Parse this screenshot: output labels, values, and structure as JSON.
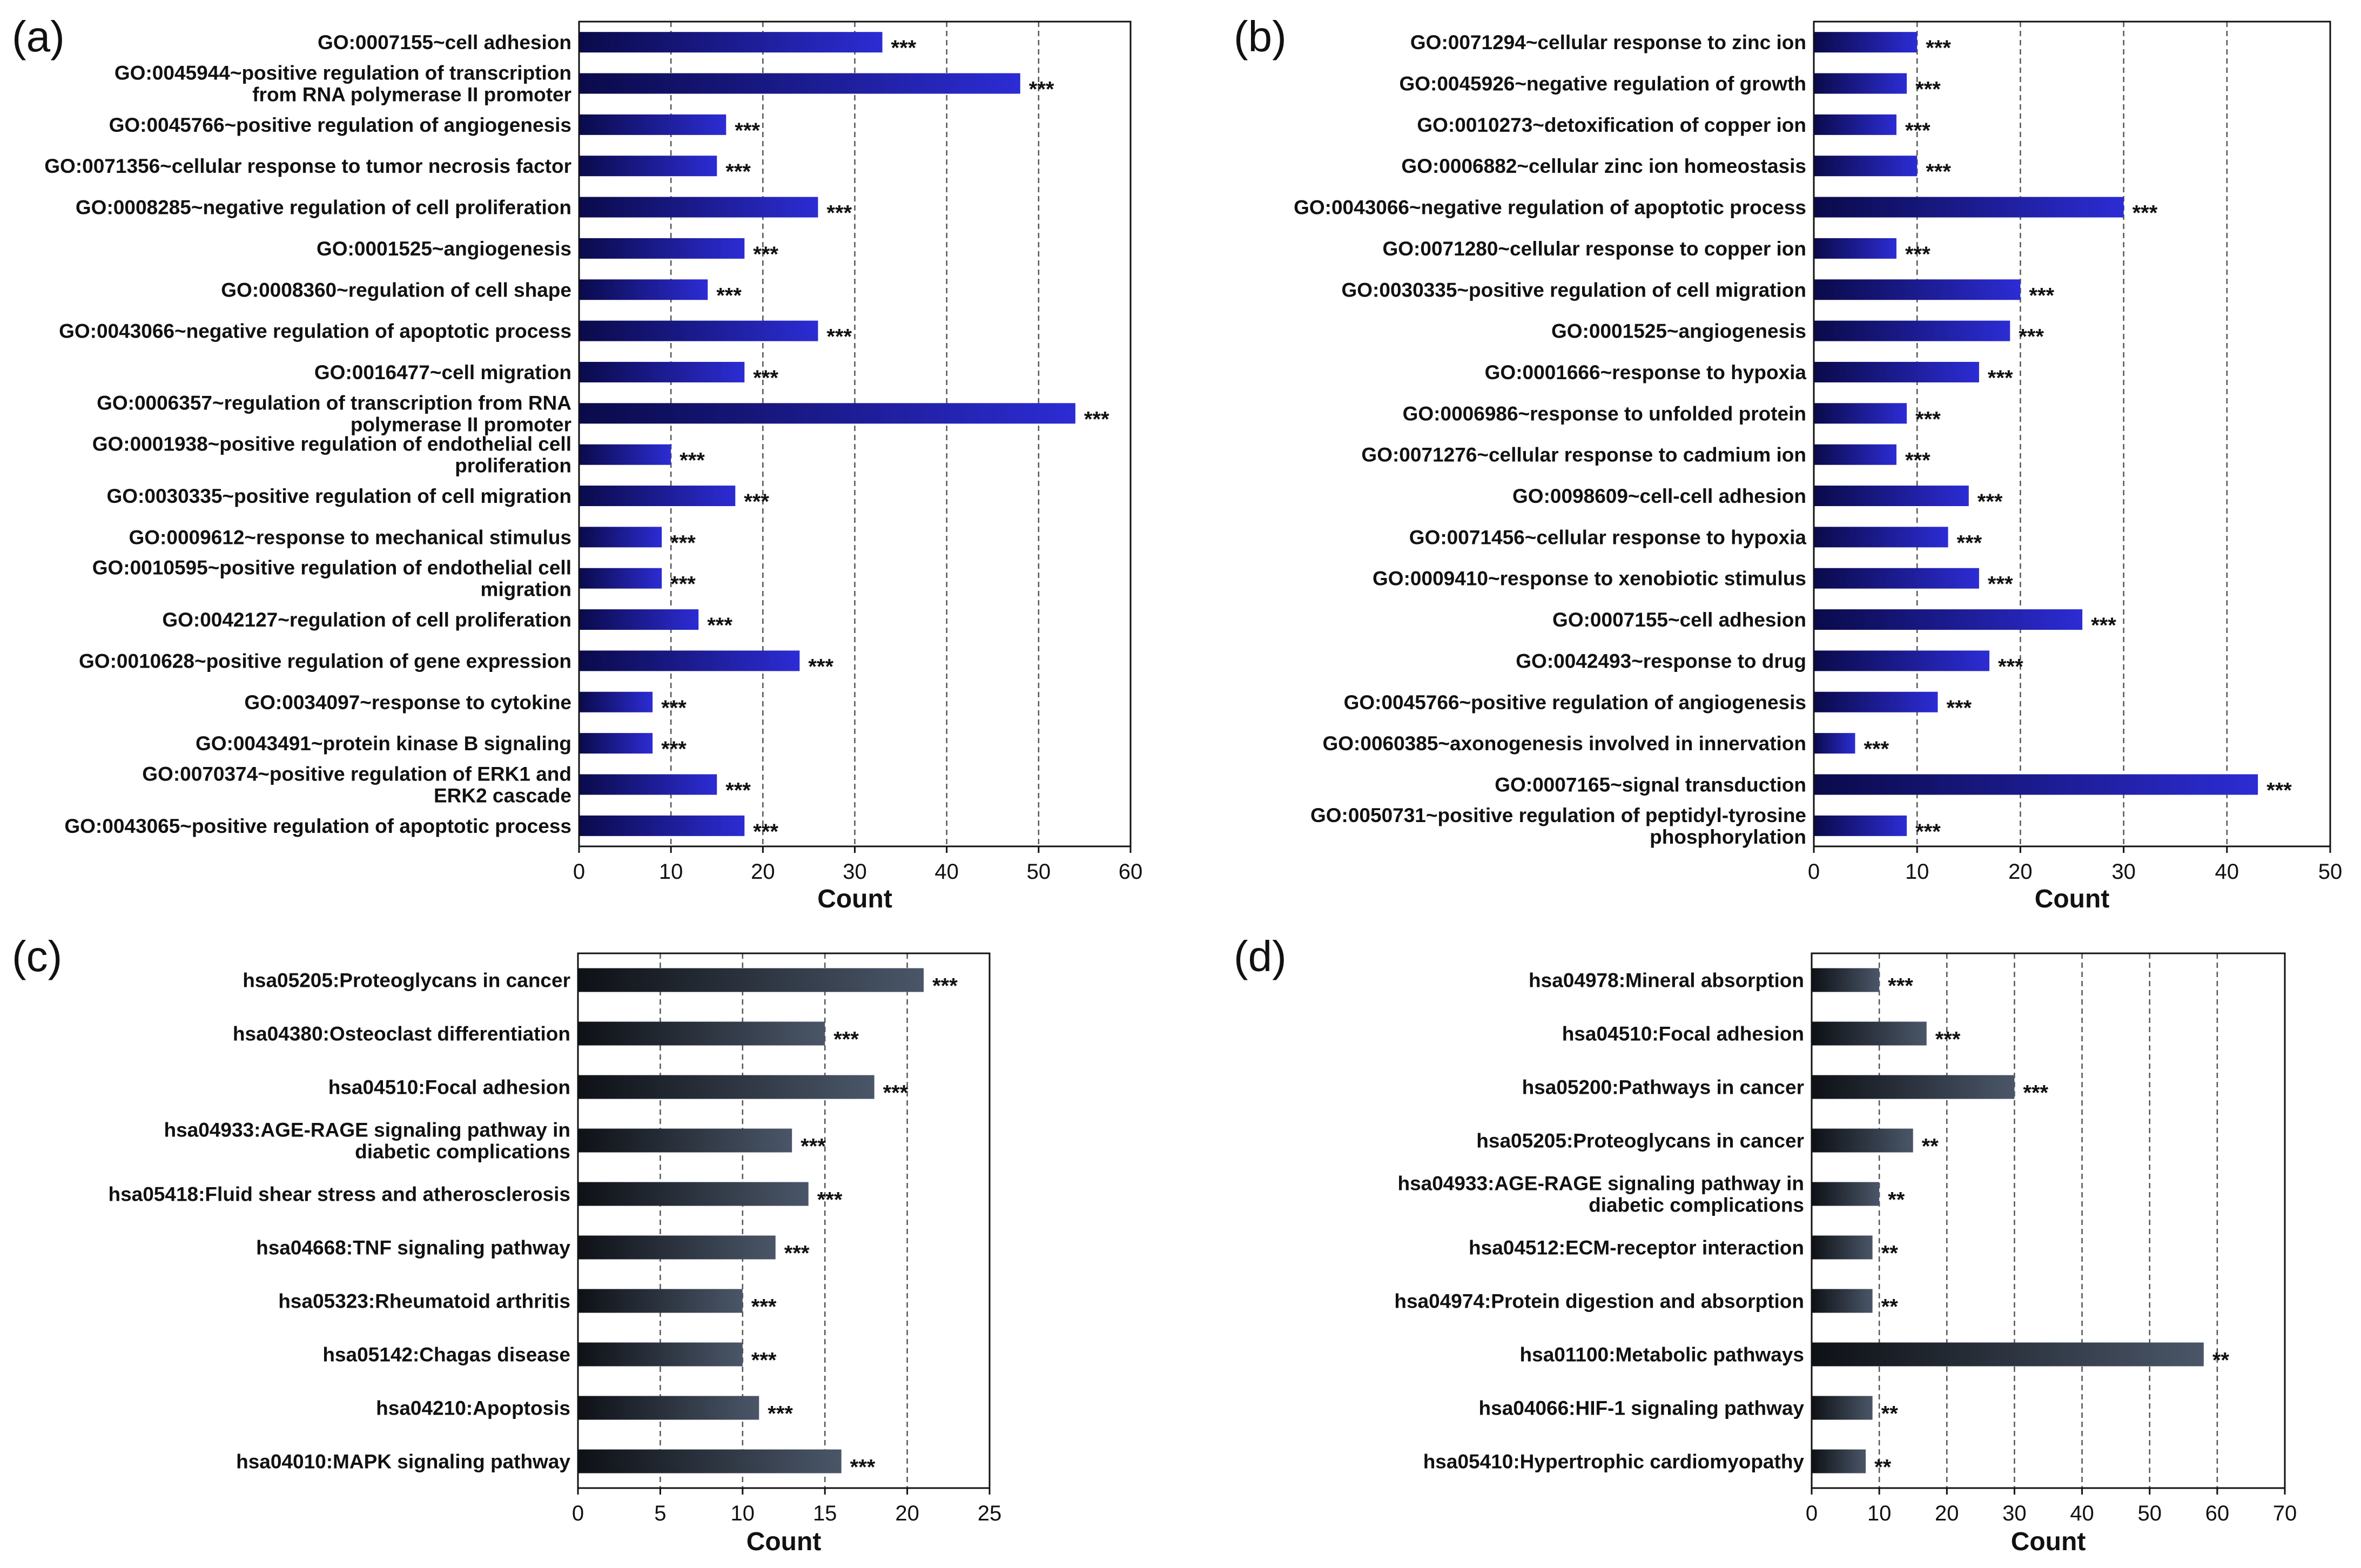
{
  "chart_data": [
    {
      "panel": "(a)",
      "type": "bar",
      "orientation": "horizontal",
      "xlabel": "Count",
      "xlim": [
        0,
        60
      ],
      "xticks": [
        0,
        10,
        20,
        30,
        40,
        50,
        60
      ],
      "grid": "vertical dashed",
      "bar_color": "#1c1ca8",
      "categories": [
        [
          "GO:0007155~cell adhesion"
        ],
        [
          "GO:0045944~positive regulation of transcription",
          "from RNA polymerase II promoter"
        ],
        [
          "GO:0045766~positive regulation of angiogenesis"
        ],
        [
          "GO:0071356~cellular response to tumor necrosis factor"
        ],
        [
          "GO:0008285~negative regulation of cell proliferation"
        ],
        [
          "GO:0001525~angiogenesis"
        ],
        [
          "GO:0008360~regulation of cell shape"
        ],
        [
          "GO:0043066~negative regulation of apoptotic process"
        ],
        [
          "GO:0016477~cell migration"
        ],
        [
          "GO:0006357~regulation of transcription from RNA",
          "polymerase II promoter"
        ],
        [
          "GO:0001938~positive regulation of endothelial cell",
          "proliferation"
        ],
        [
          "GO:0030335~positive regulation of cell migration"
        ],
        [
          "GO:0009612~response to mechanical stimulus"
        ],
        [
          "GO:0010595~positive regulation of endothelial cell",
          "migration"
        ],
        [
          "GO:0042127~regulation of cell proliferation"
        ],
        [
          "GO:0010628~positive regulation of gene expression"
        ],
        [
          "GO:0034097~response to cytokine"
        ],
        [
          "GO:0043491~protein kinase B signaling"
        ],
        [
          "GO:0070374~positive regulation of ERK1 and",
          "ERK2 cascade"
        ],
        [
          "GO:0043065~positive regulation of apoptotic process"
        ]
      ],
      "values": [
        33,
        48,
        16,
        15,
        26,
        18,
        14,
        26,
        18,
        54,
        10,
        17,
        9,
        9,
        13,
        24,
        8,
        8,
        15,
        18
      ],
      "significance": [
        "***",
        "***",
        "***",
        "***",
        "***",
        "***",
        "***",
        "***",
        "***",
        "***",
        "***",
        "***",
        "***",
        "***",
        "***",
        "***",
        "***",
        "***",
        "***",
        "***"
      ]
    },
    {
      "panel": "(b)",
      "type": "bar",
      "orientation": "horizontal",
      "xlabel": "Count",
      "xlim": [
        0,
        50
      ],
      "xticks": [
        0,
        10,
        20,
        30,
        40,
        50
      ],
      "grid": "vertical dashed",
      "bar_color": "#1c1ca8",
      "categories": [
        [
          "GO:0071294~cellular response to zinc ion"
        ],
        [
          "GO:0045926~negative regulation of growth"
        ],
        [
          "GO:0010273~detoxification of copper ion"
        ],
        [
          "GO:0006882~cellular zinc ion homeostasis"
        ],
        [
          "GO:0043066~negative regulation of apoptotic process"
        ],
        [
          "GO:0071280~cellular response to copper ion"
        ],
        [
          "GO:0030335~positive regulation of cell migration"
        ],
        [
          "GO:0001525~angiogenesis"
        ],
        [
          "GO:0001666~response to hypoxia"
        ],
        [
          "GO:0006986~response to unfolded protein"
        ],
        [
          "GO:0071276~cellular response to cadmium ion"
        ],
        [
          "GO:0098609~cell-cell adhesion"
        ],
        [
          "GO:0071456~cellular response to hypoxia"
        ],
        [
          "GO:0009410~response to xenobiotic stimulus"
        ],
        [
          "GO:0007155~cell adhesion"
        ],
        [
          "GO:0042493~response to drug"
        ],
        [
          "GO:0045766~positive regulation of angiogenesis"
        ],
        [
          "GO:0060385~axonogenesis involved in innervation"
        ],
        [
          "GO:0007165~signal transduction"
        ],
        [
          "GO:0050731~positive regulation of peptidyl-tyrosine",
          "phosphorylation"
        ]
      ],
      "values": [
        10,
        9,
        8,
        10,
        30,
        8,
        20,
        19,
        16,
        9,
        8,
        15,
        13,
        16,
        26,
        17,
        12,
        4,
        43,
        9
      ],
      "significance": [
        "***",
        "***",
        "***",
        "***",
        "***",
        "***",
        "***",
        "***",
        "***",
        "***",
        "***",
        "***",
        "***",
        "***",
        "***",
        "***",
        "***",
        "***",
        "***",
        "***"
      ]
    },
    {
      "panel": "(c)",
      "type": "bar",
      "orientation": "horizontal",
      "xlabel": "Count",
      "xlim": [
        0,
        25
      ],
      "xticks": [
        0,
        5,
        10,
        15,
        20,
        25
      ],
      "grid": "vertical dashed",
      "bar_color": "#3a4250",
      "categories": [
        [
          "hsa05205:Proteoglycans in cancer"
        ],
        [
          "hsa04380:Osteoclast differentiation"
        ],
        [
          "hsa04510:Focal adhesion"
        ],
        [
          "hsa04933:AGE-RAGE signaling pathway in",
          "diabetic complications"
        ],
        [
          "hsa05418:Fluid shear stress and atherosclerosis"
        ],
        [
          "hsa04668:TNF signaling pathway"
        ],
        [
          "hsa05323:Rheumatoid arthritis"
        ],
        [
          "hsa05142:Chagas disease"
        ],
        [
          "hsa04210:Apoptosis"
        ],
        [
          "hsa04010:MAPK signaling pathway"
        ]
      ],
      "values": [
        21,
        15,
        18,
        13,
        14,
        12,
        10,
        10,
        11,
        16
      ],
      "significance": [
        "***",
        "***",
        "***",
        "***",
        "***",
        "***",
        "***",
        "***",
        "***",
        "***"
      ]
    },
    {
      "panel": "(d)",
      "type": "bar",
      "orientation": "horizontal",
      "xlabel": "Count",
      "xlim": [
        0,
        70
      ],
      "xticks": [
        0,
        10,
        20,
        30,
        40,
        50,
        60,
        70
      ],
      "grid": "vertical dashed",
      "bar_color": "#3a4250",
      "categories": [
        [
          "hsa04978:Mineral absorption"
        ],
        [
          "hsa04510:Focal adhesion"
        ],
        [
          "hsa05200:Pathways in cancer"
        ],
        [
          "hsa05205:Proteoglycans in cancer"
        ],
        [
          "hsa04933:AGE-RAGE signaling pathway in",
          "diabetic complications"
        ],
        [
          "hsa04512:ECM-receptor interaction"
        ],
        [
          "hsa04974:Protein digestion and absorption"
        ],
        [
          "hsa01100:Metabolic pathways"
        ],
        [
          "hsa04066:HIF-1 signaling pathway"
        ],
        [
          "hsa05410:Hypertrophic cardiomyopathy"
        ]
      ],
      "values": [
        10,
        17,
        30,
        15,
        10,
        9,
        9,
        58,
        9,
        8
      ],
      "significance": [
        "***",
        "***",
        "***",
        "**",
        "**",
        "**",
        "**",
        "**",
        "**",
        "**"
      ]
    }
  ]
}
